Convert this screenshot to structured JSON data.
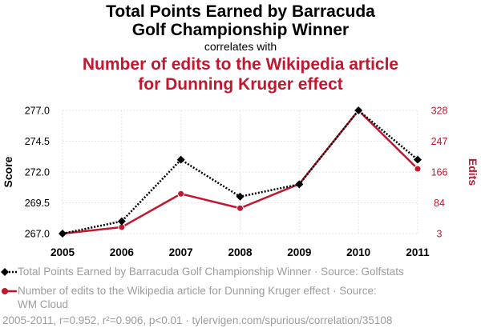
{
  "header": {
    "title_line1": "Total Points Earned by Barracuda",
    "title_line2": "Golf Championship Winner",
    "correlates": "correlates with",
    "title2_line1": "Number of edits to the Wikipedia article",
    "title2_line2": "for Dunning Kruger effect"
  },
  "legend": {
    "series1": "Total Points Earned by Barracuda Golf Championship Winner · Source: Golfstats",
    "series2_line1": "Number of edits to the Wikipedia article for Dunning Kruger effect · Source:",
    "series2_line2": "WM Cloud"
  },
  "footer": "2005-2011, r=0.952, r²=0.906, p<0.01 · tylervigen.com/spurious/correlation/35108",
  "colors": {
    "series1": "#000000",
    "series2": "#c1172f",
    "muted": "#9d9d9d",
    "grid": "#e6e6e6"
  },
  "chart_data": {
    "type": "line",
    "categories": [
      "2005",
      "2006",
      "2007",
      "2008",
      "2009",
      "2010",
      "2011"
    ],
    "x": [
      2005,
      2006,
      2007,
      2008,
      2009,
      2010,
      2011
    ],
    "left_axis": {
      "label": "Score",
      "ticks": [
        "267.0",
        "269.5",
        "272.0",
        "274.5",
        "277.0"
      ],
      "ylim": [
        267.0,
        277.0
      ]
    },
    "right_axis": {
      "label": "Edits",
      "ticks": [
        "3",
        "84",
        "166",
        "247",
        "328"
      ],
      "ylim": [
        3,
        328
      ]
    },
    "series": [
      {
        "name": "Total Points Earned by Barracuda Golf Championship Winner",
        "axis": "left",
        "style": "dotted",
        "marker": "diamond",
        "values": [
          267.0,
          268.0,
          273.0,
          270.0,
          271.0,
          277.0,
          273.0
        ]
      },
      {
        "name": "Number of edits to the Wikipedia article for Dunning Kruger effect",
        "axis": "right",
        "style": "solid",
        "marker": "circle",
        "values": [
          3,
          20,
          108,
          70,
          134,
          328,
          174
        ]
      }
    ],
    "grid": true
  }
}
